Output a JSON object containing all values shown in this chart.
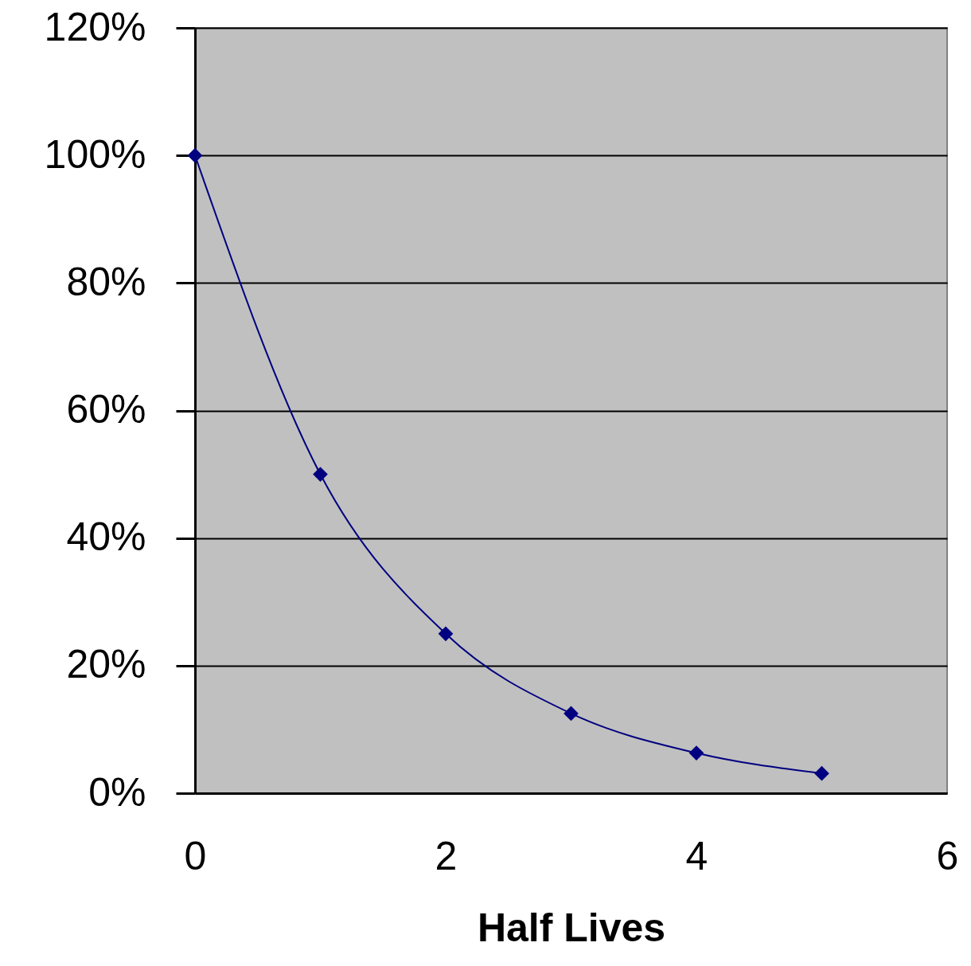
{
  "chart_data": {
    "type": "line",
    "xlabel": "Half Lives",
    "x": [
      0,
      1,
      2,
      3,
      4,
      5
    ],
    "series": [
      {
        "color": "#000080",
        "values": [
          100,
          50,
          25,
          12.5,
          6.3,
          3.1
        ]
      }
    ],
    "xlim": [
      0,
      6
    ],
    "xticks": [
      0,
      2,
      4,
      6
    ],
    "ylim": [
      0,
      120
    ],
    "yticks": [
      {
        "value": 0,
        "label": "0%"
      },
      {
        "value": 20,
        "label": "20%"
      },
      {
        "value": 40,
        "label": "40%"
      },
      {
        "value": 60,
        "label": "60%"
      },
      {
        "value": 80,
        "label": "80%"
      },
      {
        "value": 100,
        "label": "100%"
      },
      {
        "value": 120,
        "label": "120%"
      }
    ],
    "grid": "y",
    "marker": "diamond",
    "line_style": "solid"
  }
}
